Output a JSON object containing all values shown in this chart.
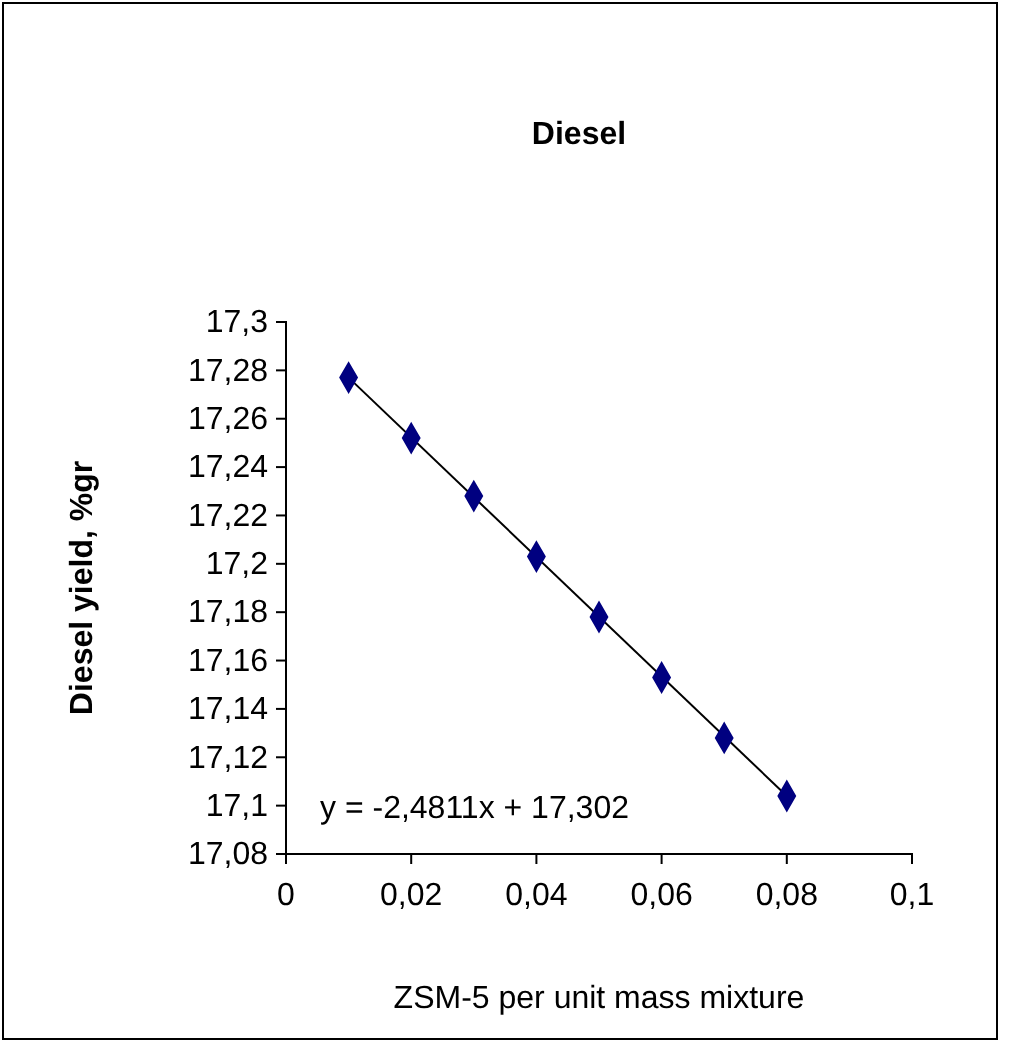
{
  "chart_data": {
    "type": "scatter",
    "title": "Diesel",
    "xlabel": "ZSM-5 per unit mass mixture",
    "ylabel": "Diesel yield, %gr",
    "x": [
      0.01,
      0.02,
      0.03,
      0.04,
      0.05,
      0.06,
      0.07,
      0.08
    ],
    "series": [
      {
        "color": "#000080",
        "marker": "diamond",
        "values": [
          17.277,
          17.252,
          17.228,
          17.203,
          17.178,
          17.153,
          17.128,
          17.104
        ]
      },
      {
        "type": "line",
        "color": "#000000",
        "marker": "none",
        "x": [
          0.01,
          0.08
        ],
        "values": [
          17.277,
          17.104
        ]
      }
    ],
    "xlim": [
      0,
      0.1
    ],
    "xticks": [
      0,
      {
        "value": 0.02,
        "label": "0,02"
      },
      {
        "value": 0.04,
        "label": "0,04"
      },
      {
        "value": 0.06,
        "label": "0,06"
      },
      {
        "value": 0.08,
        "label": "0,08"
      },
      {
        "value": 0.1,
        "label": "0,1"
      }
    ],
    "ylim": [
      17.08,
      17.3
    ],
    "yticks": [
      {
        "value": 17.08,
        "label": "17,08"
      },
      {
        "value": 17.1,
        "label": "17,1"
      },
      {
        "value": 17.12,
        "label": "17,12"
      },
      {
        "value": 17.14,
        "label": "17,14"
      },
      {
        "value": 17.16,
        "label": "17,16"
      },
      {
        "value": 17.18,
        "label": "17,18"
      },
      {
        "value": 17.2,
        "label": "17,2"
      },
      {
        "value": 17.22,
        "label": "17,22"
      },
      {
        "value": 17.24,
        "label": "17,24"
      },
      {
        "value": 17.26,
        "label": "17,26"
      },
      {
        "value": 17.28,
        "label": "17,28"
      },
      {
        "value": 17.3,
        "label": "17,3"
      }
    ],
    "annotations": [
      "y = -2,4811x + 17,302"
    ],
    "grid": false
  }
}
